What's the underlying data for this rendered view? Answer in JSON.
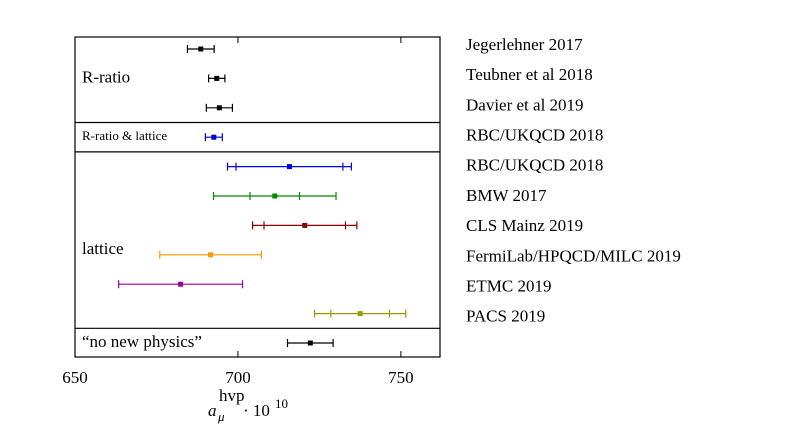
{
  "chart_data": {
    "type": "forest",
    "xlim": [
      650,
      762
    ],
    "xticks": [
      650,
      700,
      750
    ],
    "xlabel": {
      "base": "a",
      "sub": "μ",
      "sup": "hvp",
      "factor": "· 10",
      "factor_exp": "10"
    },
    "groups": [
      {
        "label": "R-ratio",
        "entries": [
          {
            "name": "Jegerlehner 2017",
            "color": "#000000",
            "value": 688.6,
            "error": 4.1
          },
          {
            "name": "Teubner et al 2018",
            "color": "#000000",
            "value": 693.5,
            "error": 2.5
          },
          {
            "name": "Davier et al 2019",
            "color": "#000000",
            "value": 694.3,
            "error": 4.0
          }
        ]
      },
      {
        "label": "R-ratio & lattice",
        "entries": [
          {
            "name": "RBC/UKQCD 2018",
            "color": "#0000cc",
            "value": 692.6,
            "error": 2.6
          }
        ]
      },
      {
        "label": "lattice",
        "entries": [
          {
            "name": "RBC/UKQCD 2018",
            "color": "#0000ee",
            "value": 715.8,
            "error": 19,
            "stat_error": 16.4
          },
          {
            "name": "BMW 2017",
            "color": "#008800",
            "value": 711.3,
            "error": 18.8,
            "stat_error": 7.6
          },
          {
            "name": "CLS Mainz 2019",
            "color": "#8b0000",
            "value": 720.5,
            "error": 16,
            "stat_error": 12.5
          },
          {
            "name": "FermiLab/HPQCD/MILC 2019",
            "color": "#ff9900",
            "value": 691.6,
            "error": 15.6
          },
          {
            "name": "ETMC 2019",
            "color": "#990099",
            "value": 682.4,
            "error": 19
          },
          {
            "name": "PACS 2019",
            "color": "#999900",
            "value": 737.5,
            "error": 14,
            "stat_error": 9
          }
        ]
      },
      {
        "label": "“no new physics”",
        "entries": [
          {
            "color": "#000000",
            "value": 722.2,
            "error": 7
          }
        ]
      }
    ]
  }
}
